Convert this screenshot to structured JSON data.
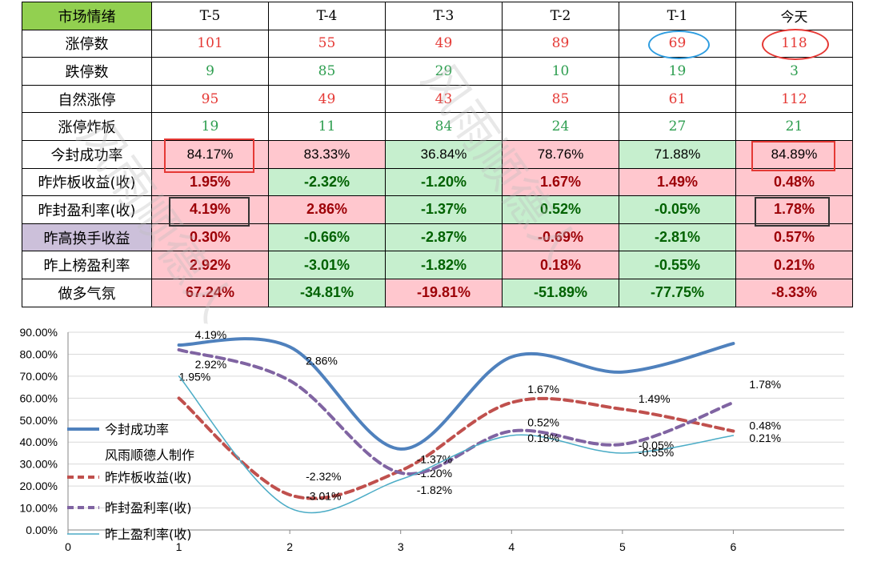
{
  "table": {
    "corner_label": "市场情绪",
    "columns": [
      "T-5",
      "T-4",
      "T-3",
      "T-2",
      "T-1",
      "今天"
    ],
    "rows": [
      {
        "label": "涨停数",
        "style": "serif",
        "values": [
          "101",
          "55",
          "49",
          "89",
          "69",
          "118"
        ],
        "tones": [
          "red",
          "red",
          "red",
          "red",
          "red",
          "red"
        ]
      },
      {
        "label": "跌停数",
        "style": "serif",
        "values": [
          "9",
          "85",
          "29",
          "10",
          "19",
          "3"
        ],
        "tones": [
          "green",
          "green",
          "green",
          "green",
          "green",
          "green"
        ]
      },
      {
        "label": "自然涨停",
        "style": "serif",
        "values": [
          "95",
          "49",
          "43",
          "85",
          "61",
          "112"
        ],
        "tones": [
          "red",
          "red",
          "red",
          "red",
          "red",
          "red"
        ]
      },
      {
        "label": "涨停炸板",
        "style": "serif",
        "values": [
          "19",
          "11",
          "84",
          "24",
          "27",
          "21"
        ],
        "tones": [
          "green",
          "green",
          "green",
          "green",
          "green",
          "green"
        ]
      },
      {
        "label": "今封成功率",
        "style": "plain",
        "values": [
          "84.17%",
          "83.33%",
          "36.84%",
          "78.76%",
          "71.88%",
          "84.89%"
        ],
        "fills": [
          "pink",
          "pink",
          "green",
          "pink",
          "green",
          "pink"
        ]
      },
      {
        "label": "昨炸板收益(收)",
        "style": "bold",
        "values": [
          "1.95%",
          "-2.32%",
          "-1.20%",
          "1.67%",
          "1.49%",
          "0.48%"
        ],
        "fills": [
          "pink",
          "green",
          "green",
          "pink",
          "pink",
          "pink"
        ]
      },
      {
        "label": "昨封盈利率(收)",
        "style": "bold",
        "values": [
          "4.19%",
          "2.86%",
          "-1.37%",
          "0.52%",
          "-0.05%",
          "1.78%"
        ],
        "fills": [
          "pink",
          "pink",
          "green",
          "green",
          "green",
          "pink"
        ]
      },
      {
        "label": "昨高换手收益",
        "style": "bold",
        "label_fill": "lavender",
        "values": [
          "0.30%",
          "-0.66%",
          "-2.87%",
          "-0.69%",
          "-2.81%",
          "0.57%"
        ],
        "fills": [
          "pink",
          "green",
          "green",
          "pink",
          "green",
          "pink"
        ]
      },
      {
        "label": "昨上榜盈利率",
        "style": "bold",
        "values": [
          "2.92%",
          "-3.01%",
          "-1.82%",
          "0.18%",
          "-0.55%",
          "0.21%"
        ],
        "fills": [
          "pink",
          "green",
          "green",
          "pink",
          "green",
          "pink"
        ]
      },
      {
        "label": "做多气氛",
        "style": "bold",
        "values": [
          "67.24%",
          "-34.81%",
          "-19.81%",
          "-51.89%",
          "-77.75%",
          "-8.33%"
        ],
        "fills": [
          "pink",
          "green",
          "pink",
          "green",
          "green",
          "pink"
        ]
      }
    ],
    "colors": {
      "header_green": "#92d050",
      "label_lavender": "#ccc0da",
      "fill_pink": "#ffc7ce",
      "fill_green": "#c6efce",
      "text_red": "#e53935",
      "text_green": "#2e9e50",
      "text_dark_red": "#9c0006",
      "text_dark_green": "#006100"
    }
  },
  "watermark": {
    "lines": [
      "风雨顺德人",
      "风雨顺德人"
    ]
  },
  "chart_data": {
    "type": "line",
    "x": [
      1,
      2,
      3,
      4,
      5,
      6
    ],
    "xlim": [
      0,
      7
    ],
    "ylim": [
      0,
      0.9
    ],
    "x_ticks": [
      "0",
      "1",
      "2",
      "3",
      "4",
      "5",
      "6"
    ],
    "y_ticks": [
      "0.00%",
      "10.00%",
      "20.00%",
      "30.00%",
      "40.00%",
      "50.00%",
      "60.00%",
      "70.00%",
      "80.00%",
      "90.00%"
    ],
    "grid": "horizontal",
    "legend_position": "left",
    "legend_note": "风雨顺德人制作",
    "series": [
      {
        "name": "今封成功率",
        "values": [
          0.8417,
          0.8333,
          0.3684,
          0.7876,
          0.7188,
          0.8489
        ],
        "color": "#4f81bd",
        "dash": "solid",
        "width": 4,
        "labels": [
          "",
          "",
          "",
          "",
          "",
          ""
        ]
      },
      {
        "name": "昨炸板收益(收)",
        "values": [
          0.6,
          0.16,
          0.27,
          0.58,
          0.55,
          0.45
        ],
        "color": "#c0504d",
        "dash": "dashed",
        "width": 4,
        "labels": [
          "1.95%",
          "-2.32%",
          "-1.20%",
          "1.67%",
          "1.49%",
          "0.48%"
        ]
      },
      {
        "name": "昨封盈利率(收)",
        "values": [
          0.82,
          0.68,
          0.26,
          0.45,
          0.39,
          0.58
        ],
        "color": "#8064a2",
        "dash": "dashed",
        "width": 4,
        "labels": [
          "4.19%",
          "2.86%",
          "-1.37%",
          "0.52%",
          "-0.05%",
          "1.78%"
        ]
      },
      {
        "name": "昨上盈利率(收)",
        "values": [
          0.7,
          0.1,
          0.23,
          0.43,
          0.35,
          0.43
        ],
        "color": "#4bacc6",
        "dash": "solid",
        "width": 1.5,
        "labels": [
          "2.92%",
          "-3.01%",
          "-1.82%",
          "0.18%",
          "-0.55%",
          "0.21%"
        ]
      }
    ]
  }
}
